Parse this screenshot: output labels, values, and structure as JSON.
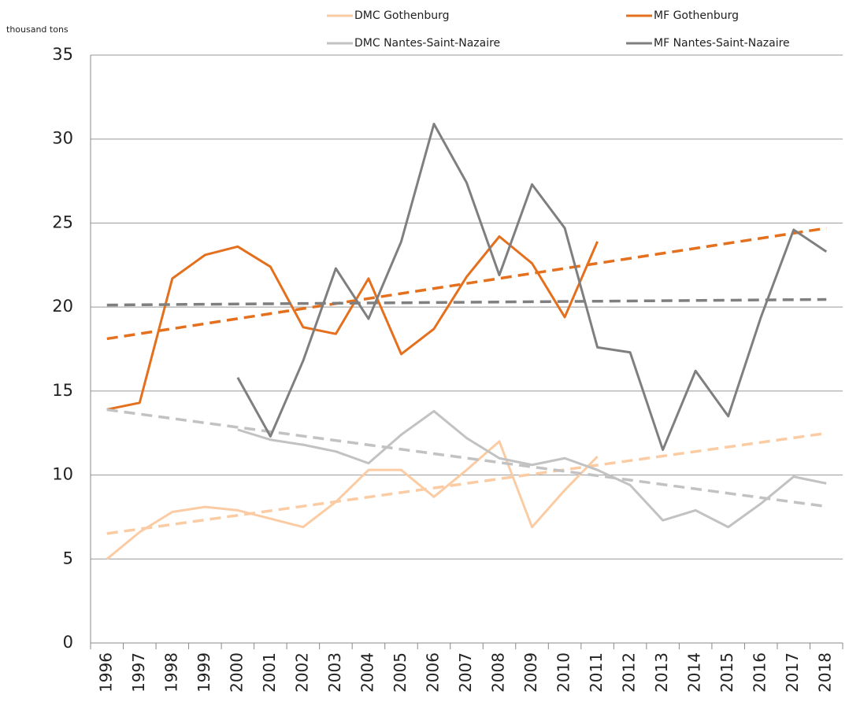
{
  "chart_data": {
    "type": "line",
    "y_label": "thousand tons",
    "categories": [
      "1996",
      "1997",
      "1998",
      "1999",
      "2000",
      "2001",
      "2002",
      "2003",
      "2004",
      "2005",
      "2006",
      "2007",
      "2008",
      "2009",
      "2010",
      "2011",
      "2012",
      "2013",
      "2014",
      "2015",
      "2016",
      "2017",
      "2018"
    ],
    "series": [
      {
        "name": "DMC Gothenburg",
        "color": "#fbcca3",
        "trendline": true,
        "values": [
          5.0,
          6.6,
          7.8,
          8.1,
          7.9,
          7.4,
          6.9,
          8.4,
          10.3,
          10.3,
          8.7,
          10.3,
          12.0,
          6.9,
          9.1,
          11.1,
          null,
          null,
          null,
          null,
          null,
          null,
          null
        ]
      },
      {
        "name": "MF Gothenburg",
        "color": "#e4701e",
        "trendline": true,
        "values": [
          13.9,
          14.3,
          21.7,
          23.1,
          23.6,
          22.4,
          18.8,
          18.4,
          21.7,
          17.2,
          18.7,
          21.8,
          24.2,
          22.6,
          19.4,
          23.9,
          null,
          null,
          null,
          null,
          null,
          null,
          null
        ]
      },
      {
        "name": "DMC Nantes-Saint-Nazaire",
        "color": "#c2c2c2",
        "trendline": true,
        "values": [
          null,
          null,
          null,
          null,
          12.7,
          12.1,
          11.8,
          11.4,
          10.7,
          12.4,
          13.8,
          12.2,
          11.0,
          10.6,
          11.0,
          10.3,
          9.4,
          7.3,
          7.9,
          6.9,
          8.3,
          9.9,
          9.5
        ]
      },
      {
        "name": "MF Nantes-Saint-Nazaire",
        "color": "#7f7f7f",
        "trendline": true,
        "values": [
          null,
          null,
          null,
          null,
          15.8,
          12.3,
          16.8,
          22.3,
          19.3,
          23.9,
          30.9,
          27.4,
          21.9,
          27.3,
          24.7,
          17.6,
          17.3,
          11.5,
          16.2,
          13.5,
          19.4,
          24.6,
          23.3
        ]
      }
    ],
    "ylim": [
      0,
      35
    ],
    "yticks": [
      0,
      5,
      10,
      15,
      20,
      25,
      30,
      35
    ],
    "grid": true,
    "legend": "top"
  }
}
